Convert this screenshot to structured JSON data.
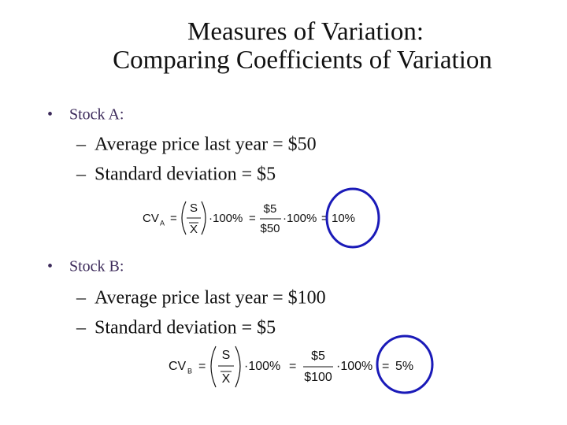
{
  "header": {
    "title_lines": [
      "Measures of Variation:",
      "Comparing Coefficients of Variation"
    ]
  },
  "sections": [
    {
      "bullet": "Stock A:",
      "items": [
        "Average price last year = $50",
        "Standard deviation = $5"
      ],
      "formula": {
        "lhs": "CV",
        "subscript": "A",
        "ratio_top": "S",
        "ratio_bottom": "X",
        "factor": "·100%",
        "equals": "=",
        "value_top": "$5",
        "value_bottom": "$50",
        "result": "10%"
      }
    },
    {
      "bullet": "Stock B:",
      "items": [
        "Average price last year = $100",
        "Standard deviation = $5"
      ],
      "formula": {
        "lhs": "CV",
        "subscript": "B",
        "ratio_top": "S",
        "ratio_bottom": "X",
        "factor": "·100%",
        "equals": "=",
        "value_top": "$5",
        "value_bottom": "$100",
        "result": "5%"
      }
    }
  ]
}
